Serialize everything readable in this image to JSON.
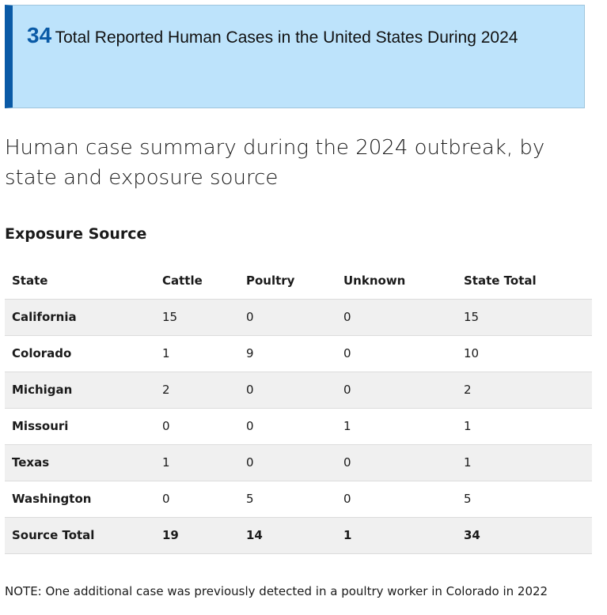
{
  "callout": {
    "number": "34",
    "text": "Total Reported Human Cases in the United States During 2024"
  },
  "section_title": "Human case summary during the 2024 outbreak, by state and exposure source",
  "table": {
    "caption": "Exposure Source",
    "headers": [
      "State",
      "Cattle",
      "Poultry",
      "Unknown",
      "State Total"
    ],
    "rows": [
      [
        "California",
        "15",
        "0",
        "0",
        "15"
      ],
      [
        "Colorado",
        "1",
        "9",
        "0",
        "10"
      ],
      [
        "Michigan",
        "2",
        "0",
        "0",
        "2"
      ],
      [
        "Missouri",
        "0",
        "0",
        "1",
        "1"
      ],
      [
        "Texas",
        "1",
        "0",
        "0",
        "1"
      ],
      [
        "Washington",
        "0",
        "5",
        "0",
        "5"
      ],
      [
        "Source Total",
        "19",
        "14",
        "1",
        "34"
      ]
    ]
  },
  "note": "NOTE: One additional case was previously detected in a poultry worker in Colorado in 2022",
  "colors": {
    "callout_background": "#bde3fb",
    "callout_accent": "#0a5aa6",
    "row_stripe": "#f0f0f0"
  }
}
